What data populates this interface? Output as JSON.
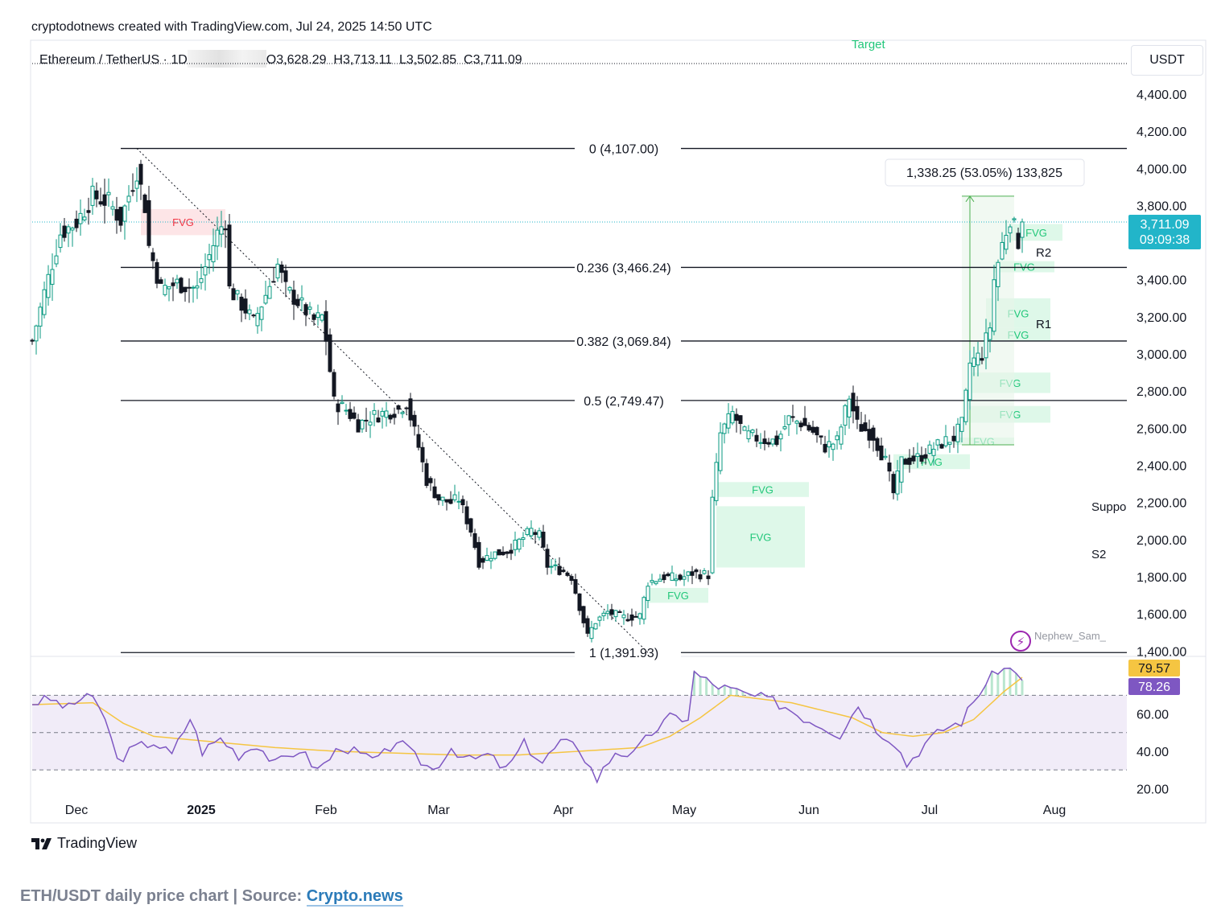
{
  "header": {
    "credit": "cryptodotnews created with TradingView.com, Jul 24, 2025 14:50 UTC",
    "symbol": "Ethereum / TetherUS · 1D",
    "ohlc": "O3,628.29  H3,713.11  L3,502.85  C3,711.09"
  },
  "currency": "USDT",
  "colors": {
    "up": "#089981",
    "down": "#131722",
    "fvg_bull": "#d8f7e5",
    "fvg_bear": "#fde1e3",
    "rsi_line": "#7e57c2",
    "rsi_ma": "#f5c542",
    "price_badge": "#22b5c9"
  },
  "chart_data": [
    {
      "type": "candlestick",
      "title": "Ethereum / TetherUS · 1D",
      "y_axis_ticks": [
        "1,400.00",
        "1,600.00",
        "1,800.00",
        "2,000.00",
        "2,200.00",
        "2,400.00",
        "2,600.00",
        "2,800.00",
        "3,000.00",
        "3,200.00",
        "3,400.00",
        "3,600.00",
        "3,800.00",
        "4,000.00",
        "4,200.00",
        "4,400.00"
      ],
      "y_tick_values": [
        1400,
        1600,
        1800,
        2000,
        2200,
        2400,
        2600,
        2800,
        3000,
        3200,
        3400,
        3600,
        3800,
        4000,
        4200,
        4400
      ],
      "y_range": [
        1380,
        4560
      ],
      "x_axis_ticks": [
        "Dec",
        "2025",
        "Feb",
        "Mar",
        "Apr",
        "May",
        "Jun",
        "Jul",
        "Aug"
      ],
      "x_tick_dates": [
        "2024-12-01",
        "2025-01-01",
        "2025-02-01",
        "2025-03-01",
        "2025-04-01",
        "2025-05-01",
        "2025-06-01",
        "2025-07-01",
        "2025-08-01"
      ],
      "x_range": [
        "2024-11-20",
        "2025-08-19"
      ],
      "current_price": "3,711.09",
      "countdown": "09:09:38",
      "fib_levels": [
        {
          "label": "0 (4,107.00)",
          "value": 4107.0
        },
        {
          "label": "0.236 (3,466.24)",
          "value": 3466.24
        },
        {
          "label": "0.382 (3,069.84)",
          "value": 3069.84
        },
        {
          "label": "0.5 (2,749.47)",
          "value": 2749.47
        },
        {
          "label": "1 (1,391.93)",
          "value": 1391.93
        }
      ],
      "measure_label": "1,338.25 (53.05%) 133,825",
      "annotations": [
        "Target",
        "R2",
        "R1",
        "Suppo",
        "S2",
        "Nephew_Sam_"
      ],
      "fvg_label": "FVG",
      "fvg_zones": [
        {
          "kind": "bear",
          "from": "2024-12-17",
          "to": "2025-01-07",
          "low": 3640,
          "high": 3780
        },
        {
          "kind": "bull",
          "from": "2025-04-22",
          "to": "2025-05-07",
          "low": 1660,
          "high": 1740
        },
        {
          "kind": "bull",
          "from": "2025-05-09",
          "to": "2025-05-31",
          "low": 1850,
          "high": 2180
        },
        {
          "kind": "bull",
          "from": "2025-05-09",
          "to": "2025-06-01",
          "low": 2230,
          "high": 2310
        },
        {
          "kind": "bull",
          "from": "2025-06-22",
          "to": "2025-07-11",
          "low": 2380,
          "high": 2460
        },
        {
          "kind": "bull",
          "from": "2025-07-07",
          "to": "2025-07-22",
          "low": 2510,
          "high": 2550
        },
        {
          "kind": "bull",
          "from": "2025-07-11",
          "to": "2025-07-31",
          "low": 2630,
          "high": 2720
        },
        {
          "kind": "bull",
          "from": "2025-07-11",
          "to": "2025-07-31",
          "low": 2790,
          "high": 2900
        },
        {
          "kind": "bull",
          "from": "2025-07-15",
          "to": "2025-07-31",
          "low": 3070,
          "high": 3140
        },
        {
          "kind": "bull",
          "from": "2025-07-15",
          "to": "2025-07-31",
          "low": 3140,
          "high": 3300
        },
        {
          "kind": "bull",
          "from": "2025-07-17",
          "to": "2025-08-01",
          "low": 3440,
          "high": 3500
        },
        {
          "kind": "bull",
          "from": "2025-07-21",
          "to": "2025-08-03",
          "low": 3610,
          "high": 3700
        }
      ],
      "series": [
        {
          "name": "ETH/USDT",
          "anchors": [
            [
              "2024-11-20",
              3070
            ],
            [
              "2024-11-23",
              3330
            ],
            [
              "2024-11-27",
              3650
            ],
            [
              "2024-12-01",
              3710
            ],
            [
              "2024-12-05",
              3850
            ],
            [
              "2024-12-09",
              3820
            ],
            [
              "2024-12-12",
              3720
            ],
            [
              "2024-12-16",
              3990
            ],
            [
              "2024-12-18",
              3800
            ],
            [
              "2024-12-19",
              3580
            ],
            [
              "2024-12-22",
              3350
            ],
            [
              "2024-12-26",
              3380
            ],
            [
              "2024-12-31",
              3350
            ],
            [
              "2025-01-05",
              3650
            ],
            [
              "2025-01-07",
              3720
            ],
            [
              "2025-01-08",
              3350
            ],
            [
              "2025-01-12",
              3240
            ],
            [
              "2025-01-14",
              3170
            ],
            [
              "2025-01-17",
              3320
            ],
            [
              "2025-01-20",
              3480
            ],
            [
              "2025-01-22",
              3350
            ],
            [
              "2025-01-26",
              3260
            ],
            [
              "2025-01-29",
              3180
            ],
            [
              "2025-01-31",
              3200
            ],
            [
              "2025-02-01",
              3080
            ],
            [
              "2025-02-03",
              2740
            ],
            [
              "2025-02-06",
              2700
            ],
            [
              "2025-02-09",
              2620
            ],
            [
              "2025-02-12",
              2660
            ],
            [
              "2025-02-15",
              2680
            ],
            [
              "2025-02-19",
              2700
            ],
            [
              "2025-02-21",
              2740
            ],
            [
              "2025-02-24",
              2500
            ],
            [
              "2025-02-26",
              2320
            ],
            [
              "2025-03-01",
              2220
            ],
            [
              "2025-03-04",
              2200
            ],
            [
              "2025-03-06",
              2220
            ],
            [
              "2025-03-09",
              2050
            ],
            [
              "2025-03-11",
              1880
            ],
            [
              "2025-03-14",
              1920
            ],
            [
              "2025-03-18",
              1940
            ],
            [
              "2025-03-20",
              1970
            ],
            [
              "2025-03-24",
              2050
            ],
            [
              "2025-03-26",
              2020
            ],
            [
              "2025-03-28",
              1860
            ],
            [
              "2025-04-01",
              1830
            ],
            [
              "2025-04-03",
              1800
            ],
            [
              "2025-04-07",
              1480
            ],
            [
              "2025-04-09",
              1560
            ],
            [
              "2025-04-12",
              1610
            ],
            [
              "2025-04-16",
              1580
            ],
            [
              "2025-04-20",
              1590
            ],
            [
              "2025-04-22",
              1770
            ],
            [
              "2025-04-26",
              1800
            ],
            [
              "2025-04-30",
              1790
            ],
            [
              "2025-05-03",
              1820
            ],
            [
              "2025-05-07",
              1810
            ],
            [
              "2025-05-08",
              2210
            ],
            [
              "2025-05-10",
              2570
            ],
            [
              "2025-05-13",
              2680
            ],
            [
              "2025-05-16",
              2570
            ],
            [
              "2025-05-20",
              2540
            ],
            [
              "2025-05-24",
              2530
            ],
            [
              "2025-05-27",
              2650
            ],
            [
              "2025-05-30",
              2630
            ],
            [
              "2025-06-02",
              2580
            ],
            [
              "2025-06-05",
              2500
            ],
            [
              "2025-06-08",
              2530
            ],
            [
              "2025-06-11",
              2770
            ],
            [
              "2025-06-13",
              2620
            ],
            [
              "2025-06-17",
              2560
            ],
            [
              "2025-06-20",
              2420
            ],
            [
              "2025-06-22",
              2250
            ],
            [
              "2025-06-24",
              2420
            ],
            [
              "2025-06-28",
              2440
            ],
            [
              "2025-07-01",
              2480
            ],
            [
              "2025-07-04",
              2520
            ],
            [
              "2025-07-07",
              2550
            ],
            [
              "2025-07-09",
              2620
            ],
            [
              "2025-07-10",
              2770
            ],
            [
              "2025-07-11",
              2950
            ],
            [
              "2025-07-14",
              3000
            ],
            [
              "2025-07-16",
              3150
            ],
            [
              "2025-07-17",
              3400
            ],
            [
              "2025-07-19",
              3590
            ],
            [
              "2025-07-21",
              3740
            ],
            [
              "2025-07-23",
              3610
            ],
            [
              "2025-07-24",
              3711
            ]
          ]
        }
      ]
    },
    {
      "type": "line",
      "title": "RSI",
      "y_axis_ticks": [
        "20.00",
        "40.00",
        "60.00"
      ],
      "y_tick_values": [
        20,
        40,
        60
      ],
      "y_range": [
        18,
        90
      ],
      "bands": [
        30,
        50,
        70
      ],
      "rsi_value": "78.26",
      "rsi_ma_value": "79.57",
      "series": [
        {
          "name": "RSI",
          "points": [
            [
              0,
              66
            ],
            [
              3,
              68
            ],
            [
              6,
              63
            ],
            [
              9,
              71
            ],
            [
              12,
              58
            ],
            [
              14,
              35
            ],
            [
              17,
              42
            ],
            [
              20,
              45
            ],
            [
              23,
              38
            ],
            [
              26,
              58
            ],
            [
              28,
              40
            ],
            [
              31,
              47
            ],
            [
              34,
              38
            ],
            [
              37,
              44
            ],
            [
              40,
              33
            ],
            [
              44,
              41
            ],
            [
              47,
              30
            ],
            [
              51,
              43
            ],
            [
              54,
              38
            ],
            [
              57,
              35
            ],
            [
              60,
              46
            ],
            [
              63,
              37
            ],
            [
              66,
              30
            ],
            [
              69,
              42
            ],
            [
              72,
              35
            ],
            [
              75,
              38
            ],
            [
              78,
              30
            ],
            [
              81,
              44
            ],
            [
              84,
              34
            ],
            [
              87,
              45
            ],
            [
              90,
              42
            ],
            [
              93,
              25
            ],
            [
              96,
              40
            ],
            [
              99,
              38
            ],
            [
              102,
              50
            ],
            [
              105,
              58
            ],
            [
              108,
              58
            ],
            [
              109,
              82
            ],
            [
              112,
              76
            ],
            [
              115,
              73
            ],
            [
              118,
              70
            ],
            [
              121,
              68
            ],
            [
              124,
              64
            ],
            [
              127,
              58
            ],
            [
              130,
              54
            ],
            [
              133,
              49
            ],
            [
              136,
              65
            ],
            [
              139,
              52
            ],
            [
              142,
              45
            ],
            [
              144,
              33
            ],
            [
              147,
              44
            ],
            [
              150,
              52
            ],
            [
              153,
              56
            ],
            [
              156,
              72
            ],
            [
              159,
              84
            ],
            [
              162,
              84
            ],
            [
              163,
              78
            ]
          ]
        },
        {
          "name": "RSI MA",
          "points": [
            [
              0,
              65
            ],
            [
              10,
              66
            ],
            [
              15,
              55
            ],
            [
              20,
              48
            ],
            [
              30,
              45
            ],
            [
              40,
              42
            ],
            [
              50,
              40
            ],
            [
              60,
              39
            ],
            [
              70,
              38
            ],
            [
              80,
              38
            ],
            [
              90,
              40
            ],
            [
              100,
              42
            ],
            [
              105,
              48
            ],
            [
              110,
              58
            ],
            [
              115,
              70
            ],
            [
              120,
              68
            ],
            [
              125,
              66
            ],
            [
              130,
              62
            ],
            [
              135,
              58
            ],
            [
              140,
              50
            ],
            [
              145,
              48
            ],
            [
              150,
              50
            ],
            [
              155,
              57
            ],
            [
              160,
              72
            ],
            [
              163,
              79.6
            ]
          ]
        }
      ]
    }
  ],
  "footer": {
    "logo_text": "TradingView",
    "caption_prefix": "ETH/USDT daily price chart | Source: ",
    "caption_source": "Crypto.news"
  }
}
